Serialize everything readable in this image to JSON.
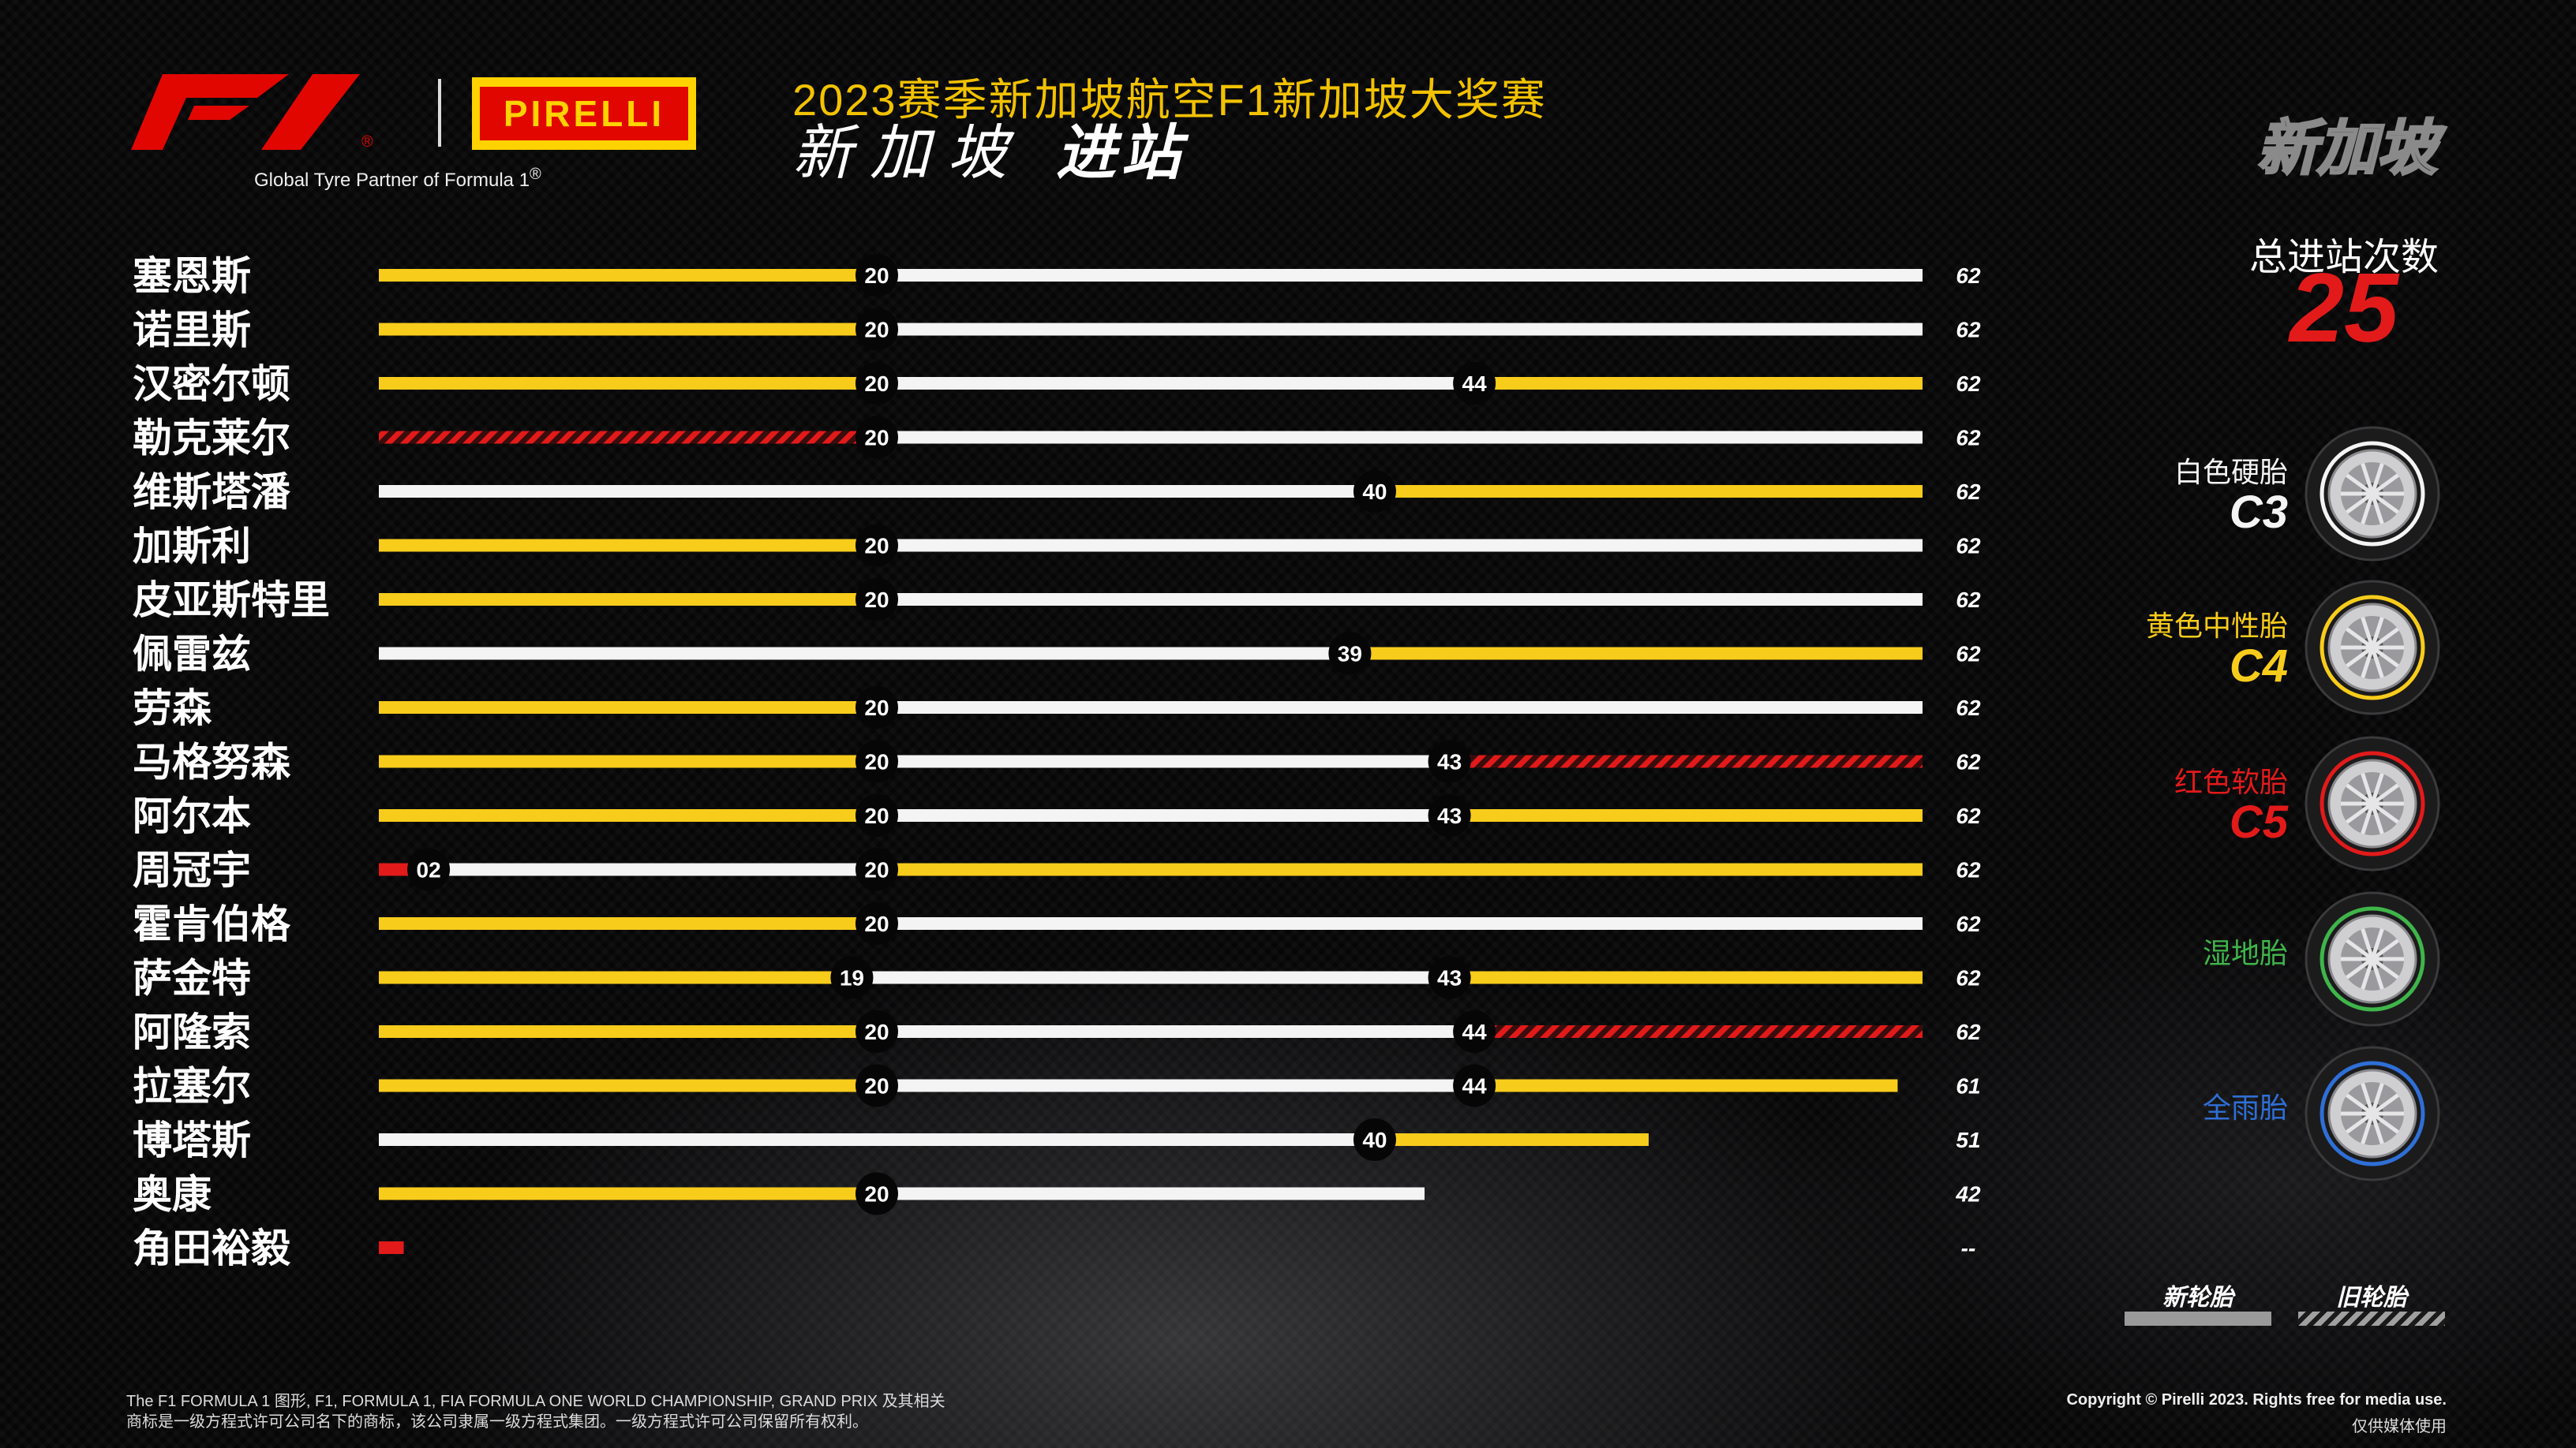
{
  "header": {
    "title": "2023赛季新加坡航空F1新加坡大奖赛",
    "subtitle_location": "新加坡",
    "subtitle_topic": "进站",
    "race_badge": "新加坡"
  },
  "brand": {
    "tagline": "Global Tyre Partner of Formula 1",
    "tagline_mark": "®",
    "f1_mark": "F1",
    "f1_registered": "®",
    "pirelli_logo_text": "PIRELLI"
  },
  "summary": {
    "total_stops_label": "总进站次数",
    "total_stops_value": "25"
  },
  "colors": {
    "hard": "#f4f4f4",
    "medium": "#f8cc1b",
    "soft": "#e21a1a",
    "intermediate": "#3fb54a",
    "wet": "#2f6fd6",
    "background": "#060607"
  },
  "tyres": [
    {
      "name": "白色硬胎",
      "code": "C3",
      "color": "#f4f4f4",
      "icon": "tyre-hard-icon"
    },
    {
      "name": "黄色中性胎",
      "code": "C4",
      "color": "#f8cc1b",
      "icon": "tyre-medium-icon"
    },
    {
      "name": "红色软胎",
      "code": "C5",
      "color": "#e21a1a",
      "icon": "tyre-soft-icon"
    },
    {
      "name": "湿地胎",
      "code": "",
      "color": "#3fb54a",
      "icon": "tyre-intermediate-icon"
    },
    {
      "name": "全雨胎",
      "code": "",
      "color": "#2f6fd6",
      "icon": "tyre-wet-icon"
    }
  ],
  "legend": {
    "new_label": "新轮胎",
    "used_label": "旧轮胎"
  },
  "chart_data": {
    "type": "bar",
    "title": "",
    "xlabel": "",
    "ylabel": "",
    "xlim": [
      0,
      62
    ],
    "total_laps": 62,
    "drivers": [
      {
        "name": "塞恩斯",
        "finish_label": "62",
        "stints": [
          {
            "compound": "medium",
            "end": 20,
            "used": false
          },
          {
            "compound": "hard",
            "end": 62,
            "used": false
          }
        ]
      },
      {
        "name": "诺里斯",
        "finish_label": "62",
        "stints": [
          {
            "compound": "medium",
            "end": 20,
            "used": false
          },
          {
            "compound": "hard",
            "end": 62,
            "used": false
          }
        ]
      },
      {
        "name": "汉密尔顿",
        "finish_label": "62",
        "stints": [
          {
            "compound": "medium",
            "end": 20,
            "used": false
          },
          {
            "compound": "hard",
            "end": 44,
            "used": false
          },
          {
            "compound": "medium",
            "end": 62,
            "used": false
          }
        ]
      },
      {
        "name": "勒克莱尔",
        "finish_label": "62",
        "stints": [
          {
            "compound": "soft",
            "end": 20,
            "used": true
          },
          {
            "compound": "hard",
            "end": 62,
            "used": false
          }
        ]
      },
      {
        "name": "维斯塔潘",
        "finish_label": "62",
        "stints": [
          {
            "compound": "hard",
            "end": 40,
            "used": false
          },
          {
            "compound": "medium",
            "end": 62,
            "used": false
          }
        ]
      },
      {
        "name": "加斯利",
        "finish_label": "62",
        "stints": [
          {
            "compound": "medium",
            "end": 20,
            "used": false
          },
          {
            "compound": "hard",
            "end": 62,
            "used": false
          }
        ]
      },
      {
        "name": "皮亚斯特里",
        "finish_label": "62",
        "stints": [
          {
            "compound": "medium",
            "end": 20,
            "used": false
          },
          {
            "compound": "hard",
            "end": 62,
            "used": false
          }
        ]
      },
      {
        "name": "佩雷兹",
        "finish_label": "62",
        "stints": [
          {
            "compound": "hard",
            "end": 39,
            "used": false
          },
          {
            "compound": "medium",
            "end": 62,
            "used": false
          }
        ]
      },
      {
        "name": "劳森",
        "finish_label": "62",
        "stints": [
          {
            "compound": "medium",
            "end": 20,
            "used": false
          },
          {
            "compound": "hard",
            "end": 62,
            "used": false
          }
        ]
      },
      {
        "name": "马格努森",
        "finish_label": "62",
        "stints": [
          {
            "compound": "medium",
            "end": 20,
            "used": false
          },
          {
            "compound": "hard",
            "end": 43,
            "used": false
          },
          {
            "compound": "soft",
            "end": 62,
            "used": true
          }
        ]
      },
      {
        "name": "阿尔本",
        "finish_label": "62",
        "stints": [
          {
            "compound": "medium",
            "end": 20,
            "used": false
          },
          {
            "compound": "hard",
            "end": 43,
            "used": false
          },
          {
            "compound": "medium",
            "end": 62,
            "used": false
          }
        ]
      },
      {
        "name": "周冠宇",
        "finish_label": "62",
        "stints": [
          {
            "compound": "soft",
            "end": 2,
            "used": false,
            "label": "02"
          },
          {
            "compound": "hard",
            "end": 20,
            "used": false
          },
          {
            "compound": "medium",
            "end": 62,
            "used": false
          }
        ]
      },
      {
        "name": "霍肯伯格",
        "finish_label": "62",
        "stints": [
          {
            "compound": "medium",
            "end": 20,
            "used": false
          },
          {
            "compound": "hard",
            "end": 62,
            "used": false
          }
        ]
      },
      {
        "name": "萨金特",
        "finish_label": "62",
        "stints": [
          {
            "compound": "medium",
            "end": 19,
            "used": false
          },
          {
            "compound": "hard",
            "end": 43,
            "used": false
          },
          {
            "compound": "medium",
            "end": 62,
            "used": false
          }
        ]
      },
      {
        "name": "阿隆索",
        "finish_label": "62",
        "stints": [
          {
            "compound": "medium",
            "end": 20,
            "used": false
          },
          {
            "compound": "hard",
            "end": 44,
            "used": false
          },
          {
            "compound": "soft",
            "end": 62,
            "used": true
          }
        ]
      },
      {
        "name": "拉塞尔",
        "finish_label": "61",
        "stints": [
          {
            "compound": "medium",
            "end": 20,
            "used": false
          },
          {
            "compound": "hard",
            "end": 44,
            "used": false
          },
          {
            "compound": "medium",
            "end": 61,
            "used": false
          }
        ]
      },
      {
        "name": "博塔斯",
        "finish_label": "51",
        "stints": [
          {
            "compound": "hard",
            "end": 40,
            "used": false
          },
          {
            "compound": "medium",
            "end": 51,
            "used": false
          }
        ]
      },
      {
        "name": "奥康",
        "finish_label": "42",
        "stints": [
          {
            "compound": "medium",
            "end": 20,
            "used": false
          },
          {
            "compound": "hard",
            "end": 42,
            "used": false
          }
        ]
      },
      {
        "name": "角田裕毅",
        "finish_label": "--",
        "stints": [
          {
            "compound": "soft",
            "end": 1,
            "used": false,
            "no_label": true
          }
        ]
      }
    ]
  },
  "footer": {
    "legal_line1": "The F1 FORMULA 1 图形, F1, FORMULA 1, FIA FORMULA ONE WORLD CHAMPIONSHIP, GRAND PRIX 及其相关",
    "legal_line2": "商标是一级方程式许可公司名下的商标，该公司隶属一级方程式集团。一级方程式许可公司保留所有权利。",
    "copyright": "Copyright © Pirelli 2023. Rights free for media use.",
    "media_note": "仅供媒体使用"
  }
}
